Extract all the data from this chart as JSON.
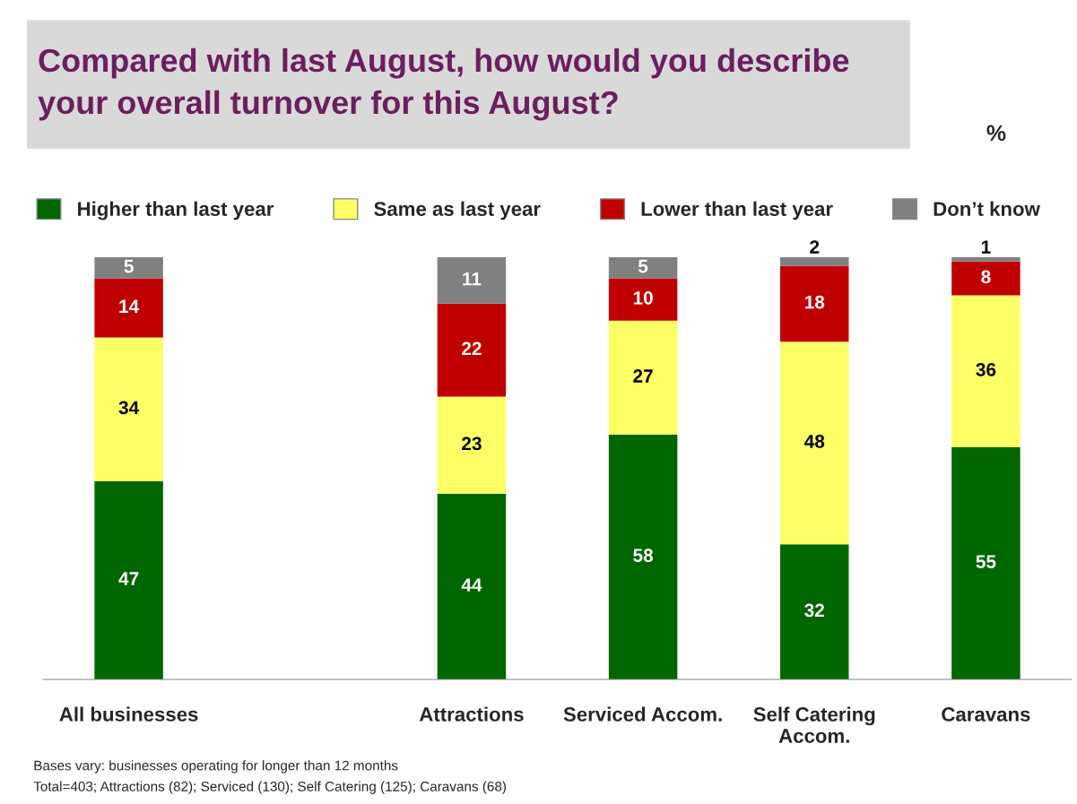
{
  "chart_data": {
    "type": "bar",
    "stacked": true,
    "title": "Compared with last August, how would you describe your overall turnover for this August?",
    "categories": [
      "All businesses",
      null,
      "Attractions",
      "Serviced Accom.",
      "Self Catering Accom.",
      "Caravans"
    ],
    "series": [
      {
        "name": "Higher than last year",
        "color": "#006600",
        "values": [
          47,
          null,
          44,
          58,
          32,
          55
        ]
      },
      {
        "name": "Same as last year",
        "color": "#ffff66",
        "values": [
          34,
          null,
          23,
          27,
          48,
          36
        ]
      },
      {
        "name": "Lower than last year",
        "color": "#c00000",
        "values": [
          14,
          null,
          22,
          10,
          18,
          8
        ]
      },
      {
        "name": "Don’t know",
        "color": "#808080",
        "values": [
          5,
          null,
          11,
          5,
          2,
          1
        ]
      }
    ],
    "data_labels": true,
    "legend": "top",
    "grid": false,
    "annotations": [
      "%",
      "Bases vary: businesses operating for longer than 12 months",
      "Total=403; Attractions (82); Serviced (130); Self Catering (125); Caravans (68)"
    ]
  }
}
